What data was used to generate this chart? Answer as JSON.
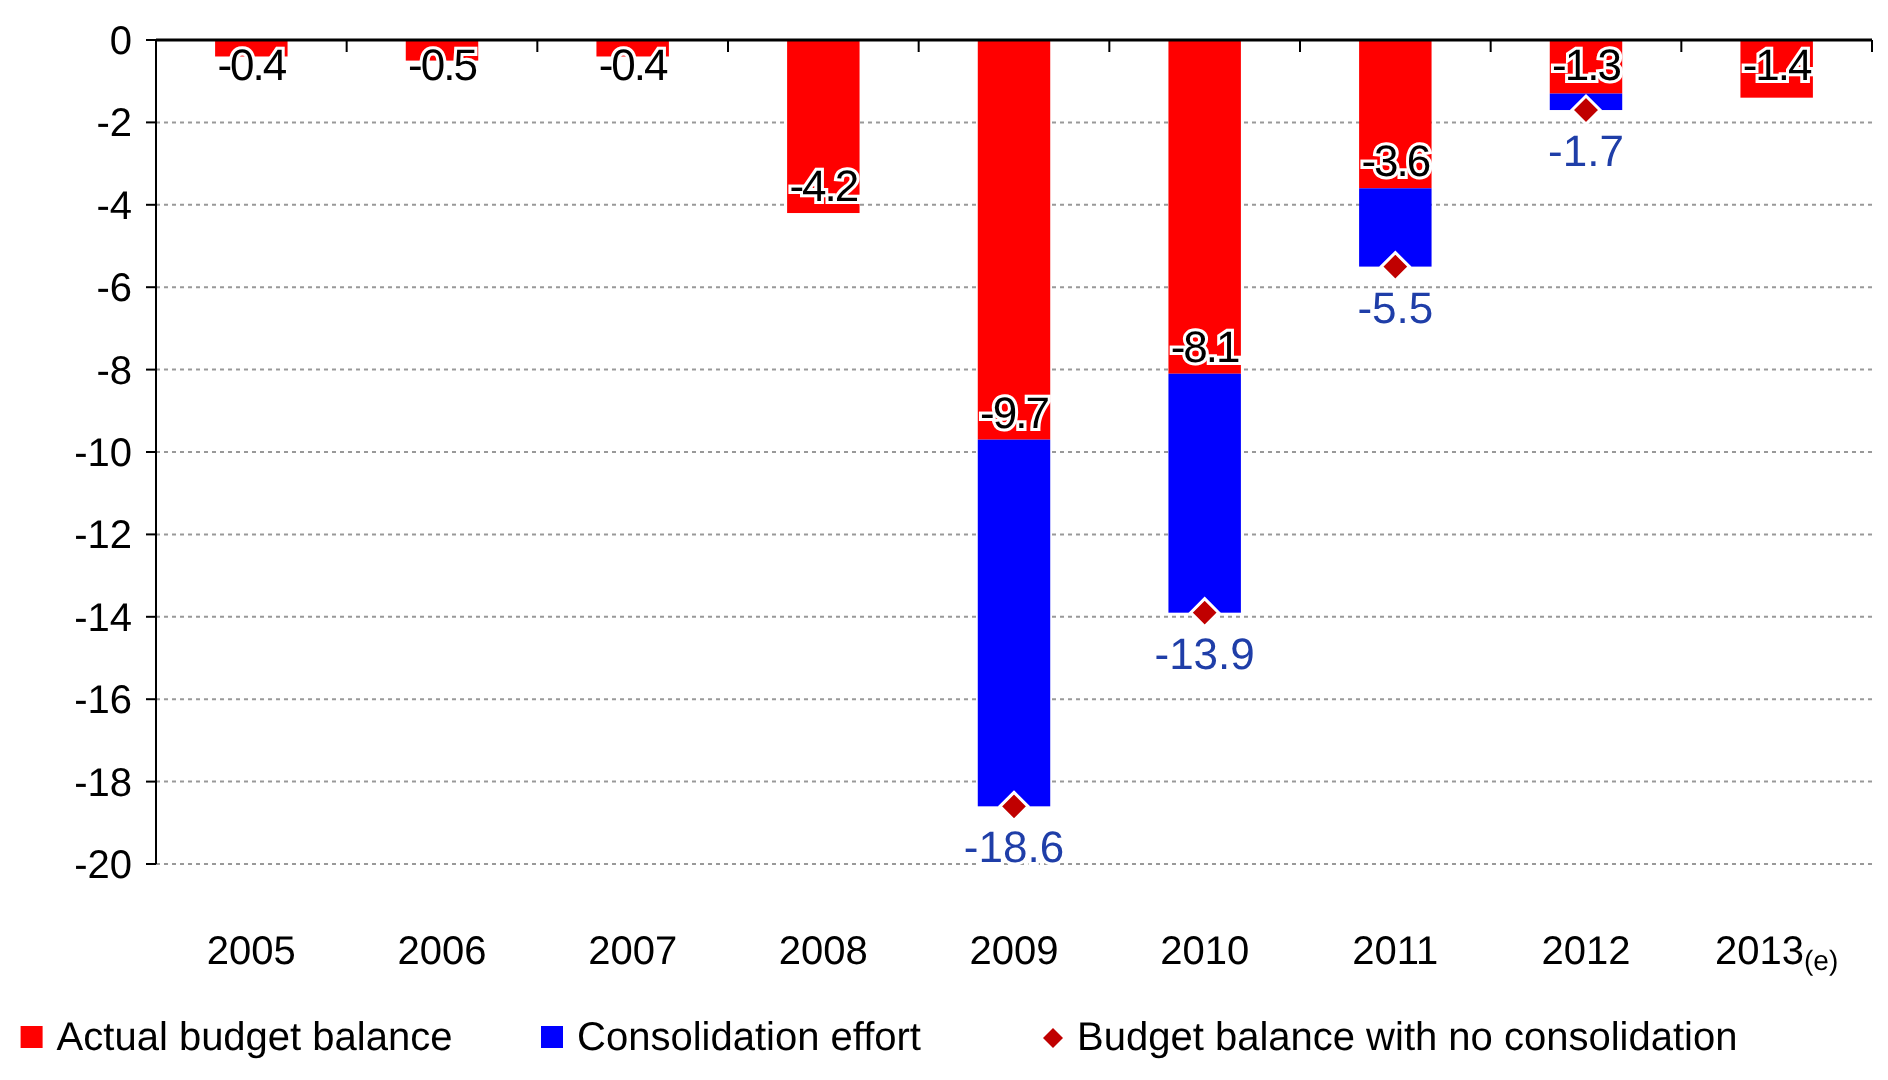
{
  "chart_data": {
    "type": "bar",
    "stacked": true,
    "categories": [
      "2005",
      "2006",
      "2007",
      "2008",
      "2009",
      "2010",
      "2011",
      "2012",
      "2013$_{(e)}$"
    ],
    "series": [
      {
        "name": "Actual budget balance",
        "color": "#ff0000",
        "values": [
          -0.4,
          -0.5,
          -0.4,
          -4.2,
          -9.7,
          -8.1,
          -3.6,
          -1.3,
          -1.4
        ],
        "value_labels": [
          "-0.4",
          "-0.5",
          "-0.4",
          "-4.2",
          "-9.7",
          "-8.1",
          "-3.6",
          "-1.3",
          "-1.4"
        ]
      },
      {
        "name": "Consolidation effort",
        "color": "#0000ff",
        "values": [
          null,
          null,
          null,
          null,
          -8.9,
          -5.8,
          -1.9,
          -0.4,
          null
        ]
      },
      {
        "name": "Budget balance with no consolidation",
        "type": "scatter",
        "marker": "diamond",
        "color": "#c00000",
        "values": [
          null,
          null,
          null,
          null,
          -18.6,
          -13.9,
          -5.5,
          -1.7,
          null
        ],
        "value_labels": [
          null,
          null,
          null,
          null,
          "-18.6",
          "-13.9",
          "-5.5",
          "-1.7",
          null
        ]
      }
    ],
    "ylim": [
      -20,
      0
    ],
    "yticks": [
      0,
      -2,
      -4,
      -6,
      -8,
      -10,
      -12,
      -14,
      -16,
      -18,
      -20
    ],
    "grid": "y",
    "legend": "bottom"
  }
}
